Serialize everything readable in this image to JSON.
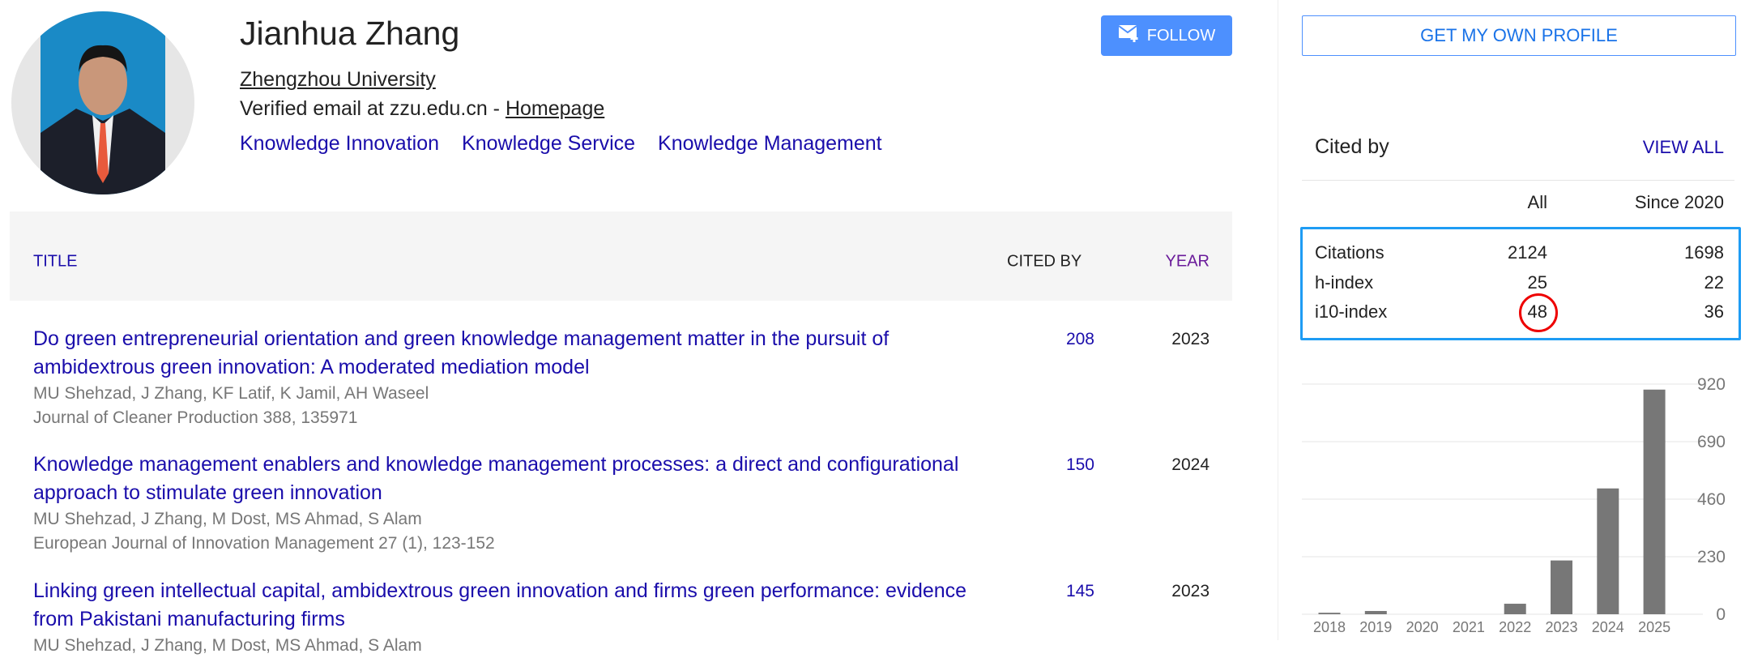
{
  "profile": {
    "name": "Jianhua Zhang",
    "affiliation": "Zhengzhou University",
    "email_text": "Verified email at zzu.edu.cn - ",
    "homepage_label": "Homepage",
    "interests": [
      "Knowledge Innovation",
      "Knowledge Service",
      "Knowledge Management"
    ],
    "follow_label": "FOLLOW",
    "follow_icon": "mail-plus-icon"
  },
  "table": {
    "headers": {
      "title": "TITLE",
      "cited_by": "CITED BY",
      "year": "YEAR"
    },
    "rows": [
      {
        "title": "Do green entrepreneurial orientation and green knowledge management matter in the pursuit of ambidextrous green innovation: A moderated mediation model",
        "authors": "MU Shehzad, J Zhang, KF Latif, K Jamil, AH Waseel",
        "venue": "Journal of Cleaner Production 388, 135971",
        "cited_by": "208",
        "year": "2023"
      },
      {
        "title": "Knowledge management enablers and knowledge management processes: a direct and configurational approach to stimulate green innovation",
        "authors": "MU Shehzad, J Zhang, M Dost, MS Ahmad, S Alam",
        "venue": "European Journal of Innovation Management 27 (1), 123-152",
        "cited_by": "150",
        "year": "2024"
      },
      {
        "title": "Linking green intellectual capital, ambidextrous green innovation and firms green performance: evidence from Pakistani manufacturing firms",
        "authors": "MU Shehzad, J Zhang, M Dost, MS Ahmad, S Alam",
        "venue": "",
        "cited_by": "145",
        "year": "2023"
      }
    ]
  },
  "sidebar": {
    "get_profile_label": "GET MY OWN PROFILE",
    "cited_by_title": "Cited by",
    "view_all_label": "VIEW ALL",
    "col_all": "All",
    "col_since": "Since 2020",
    "stats": [
      {
        "label": "Citations",
        "all": "2124",
        "since": "1698"
      },
      {
        "label": "h-index",
        "all": "25",
        "since": "22"
      },
      {
        "label": "i10-index",
        "all": "48",
        "since": "36"
      }
    ],
    "highlight_color": "#1e9cf4",
    "annotation_color": "#e00000"
  },
  "chart_data": {
    "type": "bar",
    "categories": [
      "2018",
      "2019",
      "2020",
      "2021",
      "2022",
      "2023",
      "2024",
      "2025"
    ],
    "values": [
      6,
      13,
      0,
      0,
      42,
      215,
      503,
      898
    ],
    "yticks": [
      "0",
      "230",
      "460",
      "690",
      "920"
    ],
    "ylim": [
      0,
      920
    ],
    "grid": true,
    "bar_color": "#777777"
  }
}
